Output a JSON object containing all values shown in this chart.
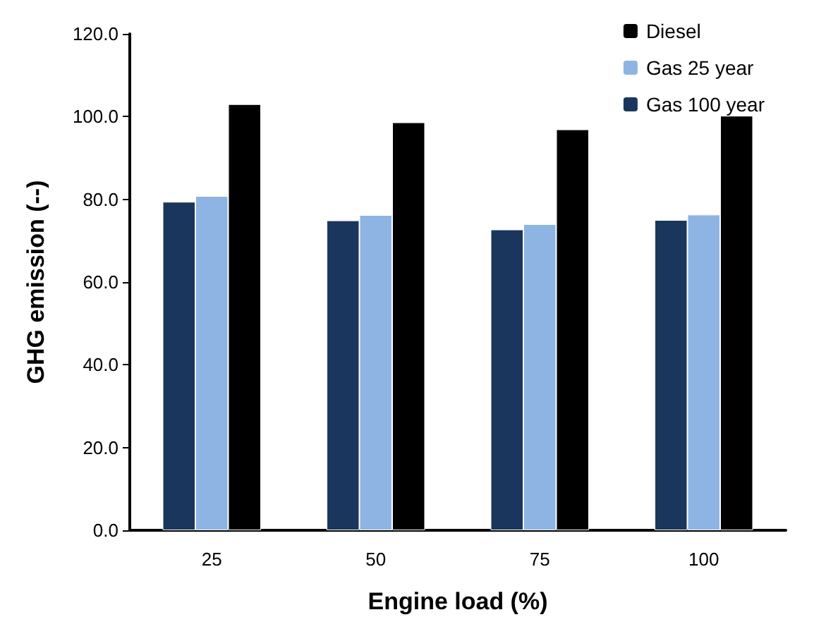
{
  "chart_data": {
    "type": "bar",
    "xlabel": "Engine load (%)",
    "ylabel": "GHG emission (--)",
    "categories": [
      "25",
      "50",
      "75",
      "100"
    ],
    "series": [
      {
        "name": "Gas 100 year",
        "color": "#1b365d",
        "values": [
          79.4,
          74.9,
          72.7,
          75.0
        ]
      },
      {
        "name": "Gas 25 year",
        "color": "#8eb4e3",
        "values": [
          80.8,
          76.2,
          74.0,
          76.3
        ]
      },
      {
        "name": "Diesel",
        "color": "#000000",
        "values": [
          103.0,
          98.6,
          96.9,
          100.2
        ]
      }
    ],
    "ylim": [
      0,
      120
    ],
    "yticks": [
      {
        "value": 0,
        "label": "0.0"
      },
      {
        "value": 20,
        "label": "20.0"
      },
      {
        "value": 40,
        "label": "40.0"
      },
      {
        "value": 60,
        "label": "60.0"
      },
      {
        "value": 80,
        "label": "80.0"
      },
      {
        "value": 100,
        "label": "100.0"
      },
      {
        "value": 120,
        "label": "120.0"
      }
    ],
    "grid": false,
    "legend": "top right"
  }
}
